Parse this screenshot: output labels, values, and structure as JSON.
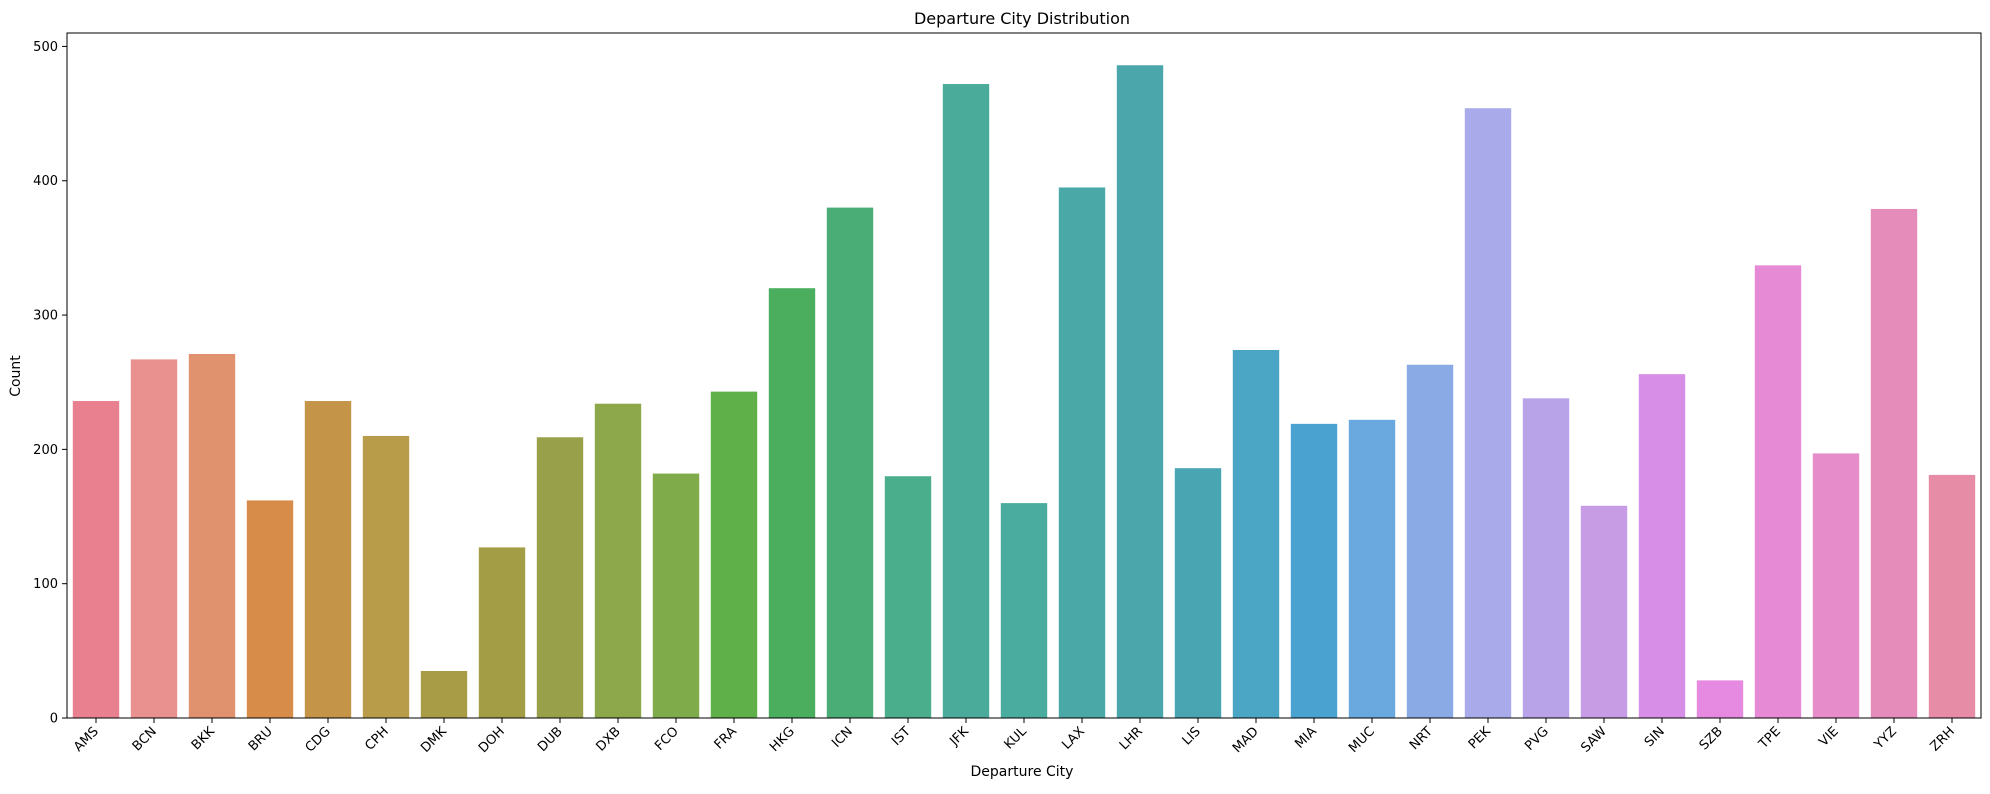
{
  "chart_data": {
    "type": "bar",
    "title": "Departure City Distribution",
    "xlabel": "Departure City",
    "ylabel": "Count",
    "ylim": [
      0,
      510
    ],
    "yticks": [
      0,
      100,
      200,
      300,
      400,
      500
    ],
    "grid": false,
    "legend": false,
    "categories": [
      "AMS",
      "BCN",
      "BKK",
      "BRU",
      "CDG",
      "CPH",
      "DMK",
      "DOH",
      "DUB",
      "DXB",
      "FCO",
      "FRA",
      "HKG",
      "ICN",
      "IST",
      "JFK",
      "KUL",
      "LAX",
      "LHR",
      "LIS",
      "MAD",
      "MIA",
      "MUC",
      "NRT",
      "PEK",
      "PVG",
      "SAW",
      "SIN",
      "SZB",
      "TPE",
      "VIE",
      "YYZ",
      "ZRH"
    ],
    "values": [
      236,
      267,
      271,
      162,
      236,
      210,
      35,
      127,
      209,
      234,
      182,
      243,
      320,
      380,
      180,
      472,
      160,
      395,
      486,
      186,
      274,
      219,
      222,
      263,
      454,
      238,
      158,
      256,
      28,
      337,
      197,
      379,
      181
    ],
    "colors": [
      "#e8808f",
      "#e8918f",
      "#e0916e",
      "#d88c4a",
      "#c49548",
      "#b89c4a",
      "#a89c46",
      "#a39e46",
      "#98a04a",
      "#8da84a",
      "#7fab4a",
      "#5fb049",
      "#4aae5e",
      "#4aad76",
      "#4aad8c",
      "#4aab9a",
      "#4aab9f",
      "#4aa8a6",
      "#4aa6ab",
      "#4aa5b3",
      "#4aa6c4",
      "#4aa2d0",
      "#6aa8e0",
      "#8aaae6",
      "#a8aaea",
      "#b8a2e8",
      "#c79ce4",
      "#d68ee6",
      "#e58ae0",
      "#e68ad6",
      "#e68ccb",
      "#e68cba",
      "#e68ca6"
    ]
  }
}
